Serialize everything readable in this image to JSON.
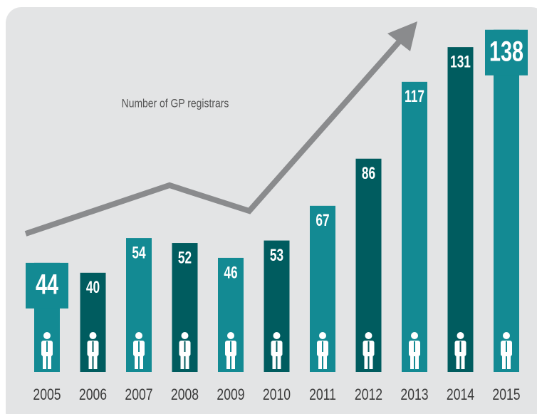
{
  "chart_data": {
    "type": "bar",
    "title": "Number of GP registrars",
    "categories": [
      "2005",
      "2006",
      "2007",
      "2008",
      "2009",
      "2010",
      "2011",
      "2012",
      "2013",
      "2014",
      "2015"
    ],
    "values": [
      44,
      40,
      54,
      52,
      46,
      53,
      67,
      86,
      117,
      131,
      138
    ],
    "colors": [
      "#138a93",
      "#005c5f",
      "#138a93",
      "#005c5f",
      "#138a93",
      "#005c5f",
      "#138a93",
      "#005c5f",
      "#138a93",
      "#005c5f",
      "#138a93"
    ]
  }
}
